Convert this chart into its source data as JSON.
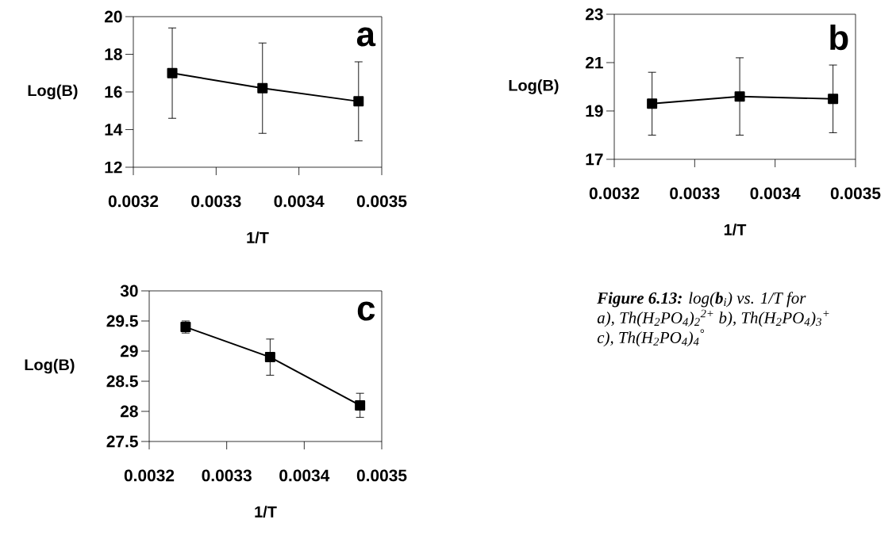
{
  "chart_data": [
    {
      "type": "line",
      "xlabel": "1/T",
      "ylabel": "Log(B)",
      "x": [
        0.003247,
        0.003356,
        0.003472
      ],
      "values": [
        17.0,
        16.2,
        15.5
      ],
      "errors": [
        2.4,
        2.4,
        2.1
      ],
      "color": "#000000",
      "marker": "square",
      "xlim": [
        0.0032,
        0.0035
      ],
      "xticks": [
        0.0032,
        0.0033,
        0.0034,
        0.0035
      ],
      "ylim": [
        12,
        20
      ],
      "yticks": [
        12,
        14,
        16,
        18,
        20
      ],
      "annotations": [
        "a"
      ]
    },
    {
      "type": "line",
      "xlabel": "1/T",
      "ylabel": "Log(B)",
      "x": [
        0.003247,
        0.003356,
        0.003472
      ],
      "values": [
        19.3,
        19.6,
        19.5
      ],
      "errors": [
        1.3,
        1.6,
        1.4
      ],
      "color": "#000000",
      "marker": "square",
      "xlim": [
        0.0032,
        0.0035
      ],
      "xticks": [
        0.0032,
        0.0033,
        0.0034,
        0.0035
      ],
      "ylim": [
        17,
        23
      ],
      "yticks": [
        17,
        19,
        21,
        23
      ],
      "annotations": [
        "b"
      ]
    },
    {
      "type": "line",
      "xlabel": "1/T",
      "ylabel": "Log(B)",
      "x": [
        0.003247,
        0.003356,
        0.003472
      ],
      "values": [
        29.4,
        28.9,
        28.1
      ],
      "errors": [
        0.1,
        0.3,
        0.2
      ],
      "color": "#000000",
      "marker": "square",
      "xlim": [
        0.0032,
        0.0035
      ],
      "xticks": [
        0.0032,
        0.0033,
        0.0034,
        0.0035
      ],
      "ylim": [
        27.5,
        30
      ],
      "yticks": [
        27.5,
        28,
        28.5,
        29,
        29.5,
        30
      ],
      "annotations": [
        "c"
      ]
    },
    {
      "type": "other",
      "annotations": [
        "**Figure 6.13:** log(**b**$_{i}$) vs. 1/T for",
        "a), Th(H$_{2}$PO$_{4}$)$_{2}$$^{2+}$ b),  Th(H$_{2}$PO$_{4}$)$_{3}$$^{+}$",
        "c), Th(H$_{2}$PO$_{4}$)$_{4}$$^{°}$"
      ]
    }
  ]
}
